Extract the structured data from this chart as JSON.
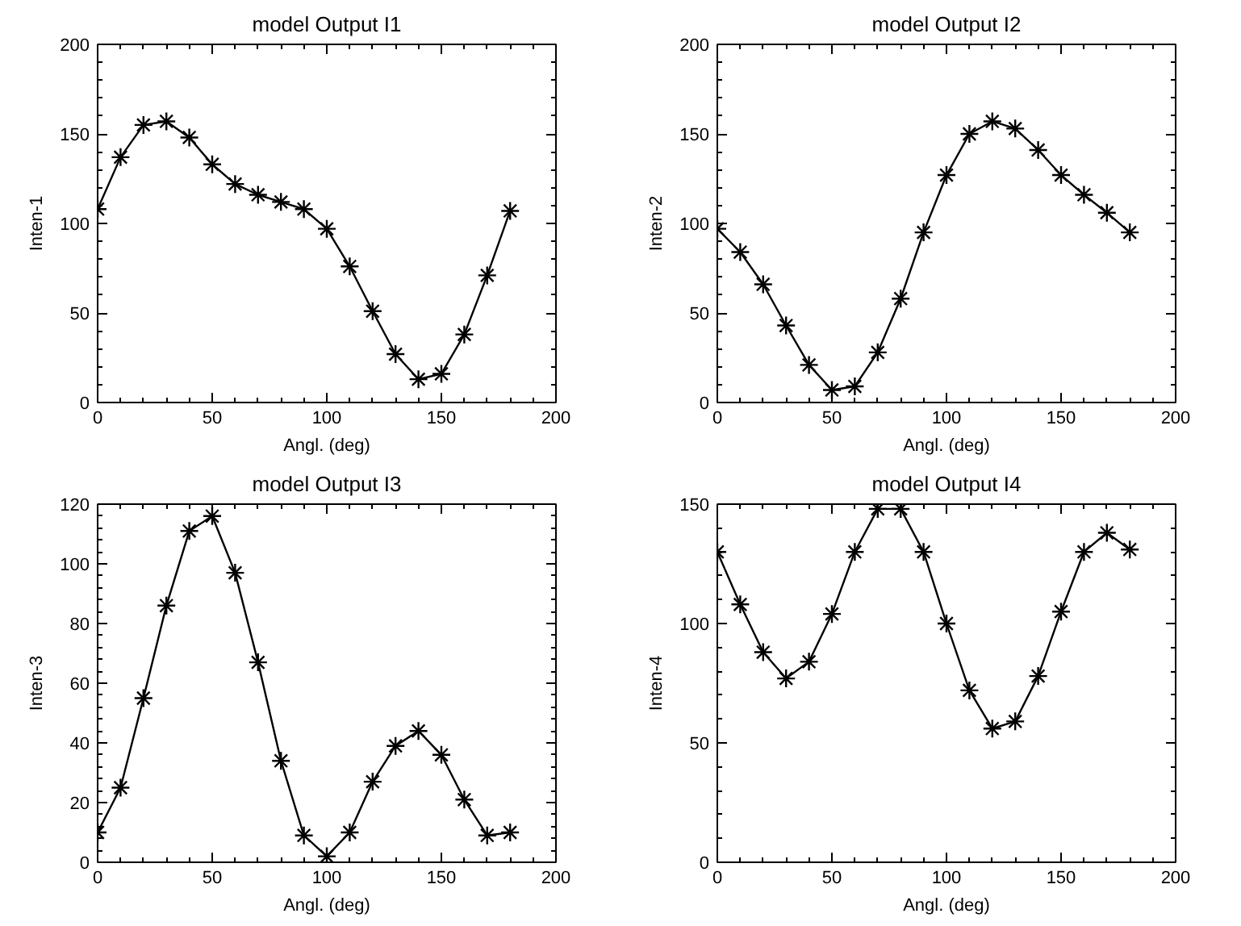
{
  "chart_data": [
    {
      "type": "line",
      "title": "model Output I1",
      "xlabel": "Angl. (deg)",
      "ylabel": "Inten-1",
      "marker": "cross",
      "line_style": "solid",
      "xlim": [
        0,
        200
      ],
      "xticks": [
        0,
        50,
        100,
        150,
        200
      ],
      "ylim": [
        0,
        200
      ],
      "yticks": [
        0,
        50,
        100,
        150,
        200
      ],
      "x": [
        0,
        10,
        20,
        30,
        40,
        50,
        60,
        70,
        80,
        90,
        100,
        110,
        120,
        130,
        140,
        150,
        160,
        170,
        180
      ],
      "series": [
        {
          "color": "#000000",
          "values": [
            108,
            137,
            155,
            157,
            148,
            133,
            122,
            116,
            112,
            108,
            97,
            76,
            51,
            27,
            13,
            16,
            38,
            71,
            107
          ]
        }
      ]
    },
    {
      "type": "line",
      "title": "model Output I2",
      "xlabel": "Angl. (deg)",
      "ylabel": "Inten-2",
      "marker": "cross",
      "line_style": "solid",
      "xlim": [
        0,
        200
      ],
      "xticks": [
        0,
        50,
        100,
        150,
        200
      ],
      "ylim": [
        0,
        200
      ],
      "yticks": [
        0,
        50,
        100,
        150,
        200
      ],
      "x": [
        0,
        10,
        20,
        30,
        40,
        50,
        60,
        70,
        80,
        90,
        100,
        110,
        120,
        130,
        140,
        150,
        160,
        170,
        180
      ],
      "series": [
        {
          "color": "#000000",
          "values": [
            97,
            84,
            66,
            43,
            21,
            7,
            9,
            28,
            58,
            95,
            127,
            150,
            157,
            153,
            141,
            127,
            116,
            106,
            95
          ]
        }
      ]
    },
    {
      "type": "line",
      "title": "model Output I3",
      "xlabel": "Angl. (deg)",
      "ylabel": "Inten-3",
      "marker": "cross",
      "line_style": "solid",
      "xlim": [
        0,
        200
      ],
      "xticks": [
        0,
        50,
        100,
        150,
        200
      ],
      "ylim": [
        0,
        120
      ],
      "yticks": [
        0,
        20,
        40,
        60,
        80,
        100,
        120
      ],
      "x": [
        0,
        10,
        20,
        30,
        40,
        50,
        60,
        70,
        80,
        90,
        100,
        110,
        120,
        130,
        140,
        150,
        160,
        170,
        180
      ],
      "series": [
        {
          "color": "#000000",
          "values": [
            10,
            25,
            55,
            86,
            111,
            116,
            97,
            67,
            34,
            9,
            2,
            10,
            27,
            39,
            44,
            36,
            21,
            9,
            10
          ]
        }
      ]
    },
    {
      "type": "line",
      "title": "model Output I4",
      "xlabel": "Angl. (deg)",
      "ylabel": "Inten-4",
      "marker": "cross",
      "line_style": "solid",
      "xlim": [
        0,
        200
      ],
      "xticks": [
        0,
        50,
        100,
        150,
        200
      ],
      "ylim": [
        0,
        150
      ],
      "yticks": [
        0,
        50,
        100,
        150
      ],
      "x": [
        0,
        10,
        20,
        30,
        40,
        50,
        60,
        70,
        80,
        90,
        100,
        110,
        120,
        130,
        140,
        150,
        160,
        170,
        180
      ],
      "series": [
        {
          "color": "#000000",
          "values": [
            130,
            108,
            88,
            77,
            84,
            104,
            130,
            148,
            148,
            130,
            100,
            72,
            56,
            59,
            78,
            105,
            130,
            138,
            131
          ]
        }
      ]
    }
  ]
}
